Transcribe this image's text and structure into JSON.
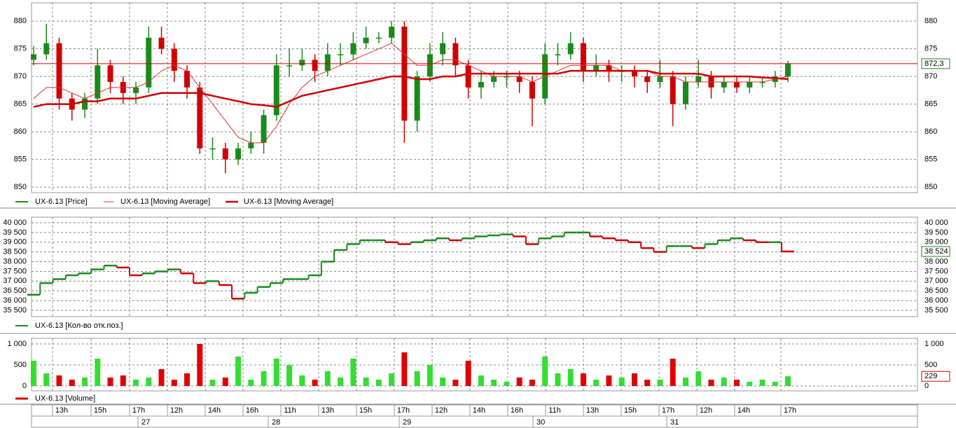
{
  "chart_data": [
    {
      "type": "candlestick",
      "up_color": "#1a8a1a",
      "down_color": "#d00000",
      "ylim": [
        849,
        883.3
      ],
      "yticks": [
        850,
        855,
        860,
        865,
        870,
        875,
        880
      ],
      "grid": true,
      "last_value": 872.3,
      "last_value_label": "872,3",
      "series": [
        {
          "name": "UX-6.13 [Price]",
          "color": "#1a8a1a",
          "open": [
            873,
            874,
            876,
            866,
            864,
            866,
            872,
            869,
            867,
            868,
            877,
            875,
            871,
            868,
            857,
            857,
            855,
            857,
            858,
            863,
            872,
            872,
            873,
            871,
            874,
            874,
            876,
            877,
            877,
            879,
            862,
            870,
            874,
            876,
            872,
            868,
            869,
            870,
            870,
            869,
            866,
            874,
            874,
            876,
            871,
            872,
            871,
            871,
            870,
            869,
            870,
            865,
            869,
            870,
            868,
            869,
            868,
            869,
            869,
            870
          ],
          "high": [
            875.5,
            879.5,
            877,
            867,
            867,
            875,
            873,
            870,
            869,
            879,
            879,
            876,
            872,
            869,
            859,
            858,
            858,
            860,
            864,
            874,
            875,
            875,
            874,
            876,
            876,
            878,
            879,
            878,
            880,
            880,
            871,
            876,
            878,
            877,
            873,
            871,
            871,
            871,
            871,
            870,
            876,
            876,
            878,
            877,
            874,
            873,
            872,
            872,
            871,
            873,
            871,
            870,
            873,
            871,
            870,
            870,
            870,
            870,
            871,
            872.8
          ],
          "low": [
            872,
            873,
            864,
            862,
            862.5,
            865,
            867,
            865,
            865,
            867,
            874,
            869,
            866,
            856,
            855,
            852.5,
            854,
            856,
            856,
            862,
            870,
            871,
            869,
            870,
            872,
            873,
            875,
            876,
            876,
            858,
            860,
            869,
            872,
            870,
            866,
            866,
            868,
            868,
            867,
            861,
            865,
            872,
            873,
            869,
            870,
            869,
            869,
            868,
            867,
            868,
            861,
            864,
            868,
            866,
            867,
            867,
            867,
            868,
            868,
            869
          ],
          "close": [
            874,
            876,
            866,
            864,
            866,
            872,
            869,
            867,
            868,
            877,
            875,
            871,
            868,
            857,
            857,
            855,
            857,
            858,
            863,
            872,
            872,
            873,
            871,
            874,
            874,
            876,
            877,
            877,
            879,
            862,
            870,
            874,
            876,
            872,
            868,
            869,
            870,
            870,
            869,
            866,
            874,
            874,
            876,
            871,
            872,
            871,
            871,
            870,
            869,
            870,
            865,
            869,
            870,
            868,
            869,
            868,
            869,
            869,
            870,
            872.3
          ]
        },
        {
          "name": "UX-6.13 [Moving Average]",
          "color": "#e03030",
          "width": 1,
          "values": [
            866,
            868,
            868,
            867,
            866,
            867,
            868,
            868,
            868,
            869,
            871,
            872,
            871,
            868,
            865,
            862,
            859,
            858,
            858,
            861,
            865,
            868,
            870,
            871,
            872,
            873,
            874,
            875,
            876,
            874,
            872,
            872,
            873,
            873,
            872,
            871,
            870,
            870,
            870,
            869,
            870,
            871,
            872,
            872,
            872,
            872,
            871,
            871,
            871,
            870,
            870,
            869,
            869,
            869,
            869,
            869,
            869,
            869,
            869.5,
            870
          ]
        },
        {
          "name": "UX-6.13 [Moving Average]",
          "color": "#d00000",
          "width": 2.5,
          "values": [
            864.5,
            865,
            865,
            865,
            865.5,
            865.5,
            866,
            866,
            866,
            866.5,
            867,
            867,
            867,
            867,
            866.5,
            866,
            865.5,
            865,
            864.8,
            864.5,
            865.5,
            866.5,
            867,
            867.5,
            868,
            868.5,
            869,
            869.5,
            870,
            870,
            869.5,
            869.5,
            870,
            870,
            870.5,
            870.5,
            870.5,
            870.5,
            870.5,
            870.5,
            870.5,
            870.5,
            871,
            871,
            871,
            871,
            871,
            871,
            871,
            870.5,
            870.5,
            870.5,
            870.5,
            870,
            870,
            870,
            870,
            869.8,
            869.7,
            869.5
          ]
        }
      ]
    },
    {
      "type": "step",
      "up_color": "#1a8a1a",
      "down_color": "#d00000",
      "ylim": [
        35176,
        40288
      ],
      "grid": true,
      "yticks": [
        {
          "value": 35500,
          "label": "35 500"
        },
        {
          "value": 36000,
          "label": "36 000"
        },
        {
          "value": 36500,
          "label": "36 500"
        },
        {
          "value": 37000,
          "label": "37 000"
        },
        {
          "value": 37500,
          "label": "37 500"
        },
        {
          "value": 38000,
          "label": "38 000"
        },
        {
          "value": 38500,
          "label": "38 500"
        },
        {
          "value": 39000,
          "label": "39 000"
        },
        {
          "value": 39500,
          "label": "39 500"
        },
        {
          "value": 40000,
          "label": "40 000"
        }
      ],
      "last_value": 38524,
      "last_value_label": "38 524",
      "series": [
        {
          "name": "UX-6.13 [Кол-во отк.поз.]",
          "color": "#1a8a1a",
          "values": [
            36300,
            36900,
            37100,
            37300,
            37400,
            37600,
            37800,
            37700,
            37300,
            37400,
            37500,
            37600,
            37400,
            36900,
            37000,
            36800,
            36100,
            36400,
            36700,
            36900,
            37100,
            37100,
            37300,
            38000,
            38600,
            38900,
            39100,
            39100,
            39000,
            38900,
            39000,
            39100,
            39200,
            39100,
            39200,
            39300,
            39350,
            39400,
            39300,
            38900,
            39200,
            39300,
            39500,
            39500,
            39300,
            39200,
            39100,
            39000,
            38700,
            38500,
            38800,
            38800,
            38700,
            38900,
            39100,
            39200,
            39100,
            39000,
            39000,
            38524
          ]
        }
      ]
    },
    {
      "type": "bar",
      "up_color": "#33dd33",
      "down_color": "#e00000",
      "ylim": [
        -117,
        1133
      ],
      "grid": true,
      "yticks": [
        0,
        500,
        {
          "value": 1000,
          "label": "1 000"
        }
      ],
      "last_value": 229,
      "series": [
        {
          "name": "UX-6.13 [Volume]",
          "color": "#e00000",
          "values": [
            600,
            300,
            250,
            150,
            200,
            650,
            200,
            250,
            150,
            200,
            400,
            150,
            300,
            1000,
            150,
            200,
            700,
            150,
            350,
            650,
            500,
            250,
            150,
            350,
            200,
            650,
            200,
            150,
            300,
            800,
            350,
            500,
            200,
            150,
            600,
            250,
            150,
            100,
            200,
            150,
            700,
            300,
            400,
            300,
            150,
            250,
            200,
            300,
            150,
            150,
            650,
            200,
            350,
            150,
            200,
            150,
            100,
            150,
            100,
            229
          ]
        }
      ]
    }
  ],
  "time_axis": {
    "hours": [
      "13h",
      "15h",
      "17h",
      "12h",
      "14h",
      "16h",
      "11h",
      "13h",
      "15h",
      "17h",
      "12h",
      "14h",
      "16h",
      "11h",
      "13h",
      "15h",
      "17h",
      "12h",
      "14h",
      "17h"
    ],
    "days": [
      "27",
      "28",
      "29",
      "30",
      "31"
    ]
  }
}
